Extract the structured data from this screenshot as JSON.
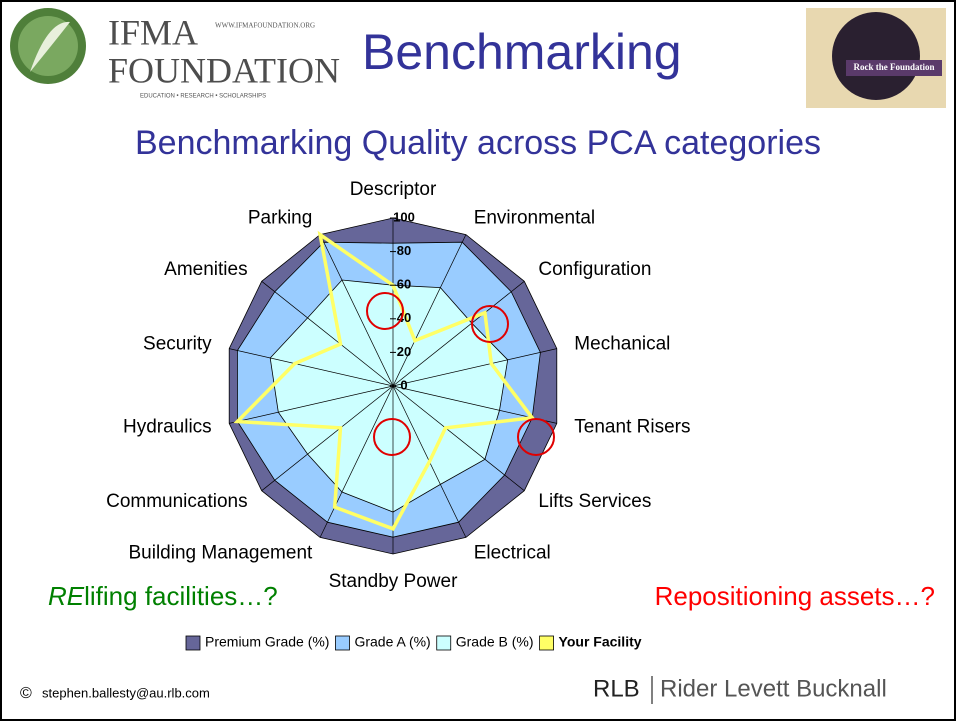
{
  "header": {
    "logo_title_1": "IFMA",
    "logo_title_2": "FOUNDATION",
    "logo_url": "WWW.IFMAFOUNDATION.ORG",
    "logo_tagline": "EDUCATION  •  RESEARCH  •  SCHOLARSHIPS",
    "title": "Benchmarking",
    "badge": "Rock the Foundation"
  },
  "chart_data": {
    "type": "radar",
    "title": "Benchmarking Quality across PCA categories",
    "categories": [
      "Descriptor",
      "Environmental",
      "Configuration",
      "Mechanical",
      "Tenant Risers",
      "Lifts Services",
      "Electrical",
      "Standby Power",
      "Building Management",
      "Communications",
      "Hydraulics",
      "Security",
      "Amenities",
      "Parking"
    ],
    "series": [
      {
        "name": "Premium Grade (%)",
        "color": "#666699",
        "fill": true,
        "values": [
          100,
          100,
          100,
          100,
          100,
          100,
          100,
          100,
          100,
          100,
          100,
          100,
          100,
          100
        ]
      },
      {
        "name": "Grade A (%)",
        "color": "#99ccff",
        "fill": true,
        "values": [
          85,
          95,
          90,
          90,
          85,
          85,
          90,
          90,
          90,
          90,
          95,
          95,
          90,
          95
        ]
      },
      {
        "name": "Grade B (%)",
        "color": "#ccffff",
        "fill": true,
        "values": [
          60,
          65,
          60,
          70,
          65,
          70,
          65,
          75,
          70,
          65,
          70,
          75,
          65,
          70
        ]
      },
      {
        "name": "Your Facility",
        "color": "#ffff66",
        "fill": false,
        "bold": true,
        "values": [
          60,
          30,
          70,
          60,
          85,
          40,
          50,
          85,
          80,
          40,
          95,
          60,
          40,
          100
        ]
      }
    ],
    "ylim": [
      0,
      100
    ],
    "yticks": [
      0,
      20,
      40,
      60,
      80,
      100
    ],
    "legend": "bottom"
  },
  "annotations": {
    "left_emphasis": "RE",
    "left_rest": "lifing facilities…?",
    "right": "Repositioning assets…?"
  },
  "footer": {
    "copyright": "©",
    "email": "stephen.ballesty@au.rlb.com",
    "brand_short": "RLB",
    "brand_long": "Rider Levett Bucknall"
  }
}
